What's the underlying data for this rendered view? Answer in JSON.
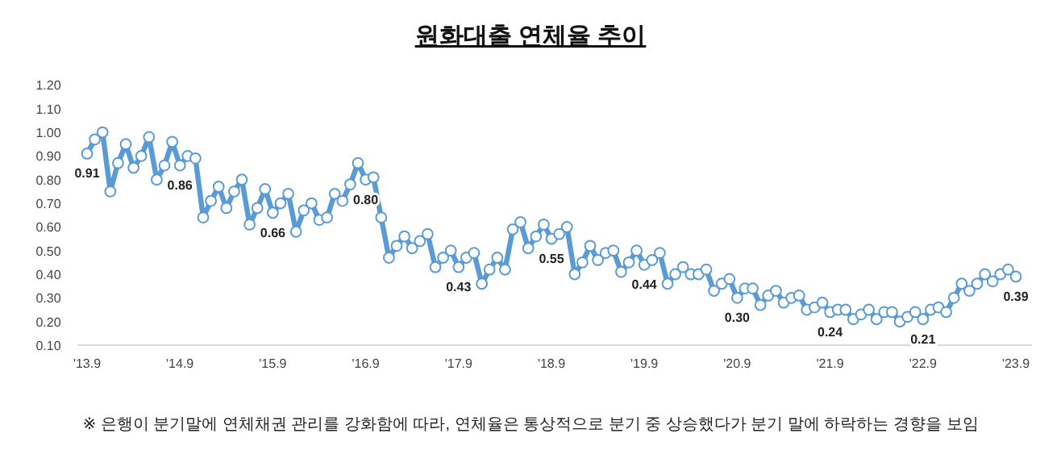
{
  "chart_data": {
    "type": "line",
    "title": "원화대출 연체율 추이",
    "categories": [
      "'13.9",
      null,
      null,
      null,
      null,
      null,
      null,
      null,
      null,
      null,
      null,
      null,
      "'14.9",
      null,
      null,
      null,
      null,
      null,
      null,
      null,
      null,
      null,
      null,
      null,
      "'15.9",
      null,
      null,
      null,
      null,
      null,
      null,
      null,
      null,
      null,
      null,
      null,
      "'16.9",
      null,
      null,
      null,
      null,
      null,
      null,
      null,
      null,
      null,
      null,
      null,
      "'17.9",
      null,
      null,
      null,
      null,
      null,
      null,
      null,
      null,
      null,
      null,
      null,
      "'18.9",
      null,
      null,
      null,
      null,
      null,
      null,
      null,
      null,
      null,
      null,
      null,
      "'19.9",
      null,
      null,
      null,
      null,
      null,
      null,
      null,
      null,
      null,
      null,
      null,
      "'20.9",
      null,
      null,
      null,
      null,
      null,
      null,
      null,
      null,
      null,
      null,
      null,
      "'21.9",
      null,
      null,
      null,
      null,
      null,
      null,
      null,
      null,
      null,
      null,
      null,
      "'22.9",
      null,
      null,
      null,
      null,
      null,
      null,
      null,
      null,
      null,
      null,
      null,
      "'23.9"
    ],
    "series": [
      {
        "color": "#5b9bd5",
        "values": [
          0.91,
          0.97,
          1.0,
          0.75,
          0.87,
          0.95,
          0.85,
          0.9,
          0.98,
          0.8,
          0.86,
          0.96,
          0.86,
          0.9,
          0.89,
          0.64,
          0.71,
          0.77,
          0.68,
          0.75,
          0.8,
          0.61,
          0.68,
          0.76,
          0.66,
          0.7,
          0.74,
          0.58,
          0.67,
          0.7,
          0.63,
          0.64,
          0.74,
          0.71,
          0.78,
          0.87,
          0.8,
          0.81,
          0.64,
          0.47,
          0.52,
          0.56,
          0.51,
          0.54,
          0.57,
          0.43,
          0.47,
          0.5,
          0.43,
          0.47,
          0.49,
          0.36,
          0.42,
          0.47,
          0.42,
          0.59,
          0.62,
          0.51,
          0.56,
          0.61,
          0.55,
          0.57,
          0.6,
          0.4,
          0.45,
          0.52,
          0.46,
          0.49,
          0.5,
          0.41,
          0.45,
          0.5,
          0.44,
          0.46,
          0.49,
          0.36,
          0.4,
          0.43,
          0.4,
          0.4,
          0.42,
          0.33,
          0.36,
          0.38,
          0.3,
          0.34,
          0.34,
          0.27,
          0.31,
          0.33,
          0.28,
          0.3,
          0.31,
          0.25,
          0.26,
          0.28,
          0.24,
          0.25,
          0.25,
          0.21,
          0.23,
          0.25,
          0.21,
          0.24,
          0.24,
          0.2,
          0.22,
          0.24,
          0.21,
          0.25,
          0.26,
          0.24,
          0.3,
          0.36,
          0.33,
          0.36,
          0.4,
          0.37,
          0.4,
          0.42,
          0.39
        ],
        "value_labels": [
          "0.91",
          null,
          null,
          null,
          null,
          null,
          null,
          null,
          null,
          null,
          null,
          null,
          "0.86",
          null,
          null,
          null,
          null,
          null,
          null,
          null,
          null,
          null,
          null,
          null,
          "0.66",
          null,
          null,
          null,
          null,
          null,
          null,
          null,
          null,
          null,
          null,
          null,
          "0.80",
          null,
          null,
          null,
          null,
          null,
          null,
          null,
          null,
          null,
          null,
          null,
          "0.43",
          null,
          null,
          null,
          null,
          null,
          null,
          null,
          null,
          null,
          null,
          null,
          "0.55",
          null,
          null,
          null,
          null,
          null,
          null,
          null,
          null,
          null,
          null,
          null,
          "0.44",
          null,
          null,
          null,
          null,
          null,
          null,
          null,
          null,
          null,
          null,
          null,
          "0.30",
          null,
          null,
          null,
          null,
          null,
          null,
          null,
          null,
          null,
          null,
          null,
          "0.24",
          null,
          null,
          null,
          null,
          null,
          null,
          null,
          null,
          null,
          null,
          null,
          "0.21",
          null,
          null,
          null,
          null,
          null,
          null,
          null,
          null,
          null,
          null,
          null,
          "0.39"
        ]
      }
    ],
    "ylim": [
      0.1,
      1.2
    ],
    "yticks": [
      {
        "value": 0.1,
        "label": "0.10"
      },
      {
        "value": 0.2,
        "label": "0.20"
      },
      {
        "value": 0.3,
        "label": "0.30"
      },
      {
        "value": 0.4,
        "label": "0.40"
      },
      {
        "value": 0.5,
        "label": "0.50"
      },
      {
        "value": 0.6,
        "label": "0.60"
      },
      {
        "value": 0.7,
        "label": "0.70"
      },
      {
        "value": 0.8,
        "label": "0.80"
      },
      {
        "value": 0.9,
        "label": "0.90"
      },
      {
        "value": 1.0,
        "label": "1.00"
      },
      {
        "value": 1.1,
        "label": "1.10"
      },
      {
        "value": 1.2,
        "label": "1.20"
      }
    ],
    "grid": false,
    "marker": "circle",
    "line_style": "solid",
    "annotations": [
      "※ 은행이 분기말에 연체채권 관리를 강화함에 따라, 연체율은 통상적으로 분기 중 상승했다가 분기 말에 하락하는 경향을 보임"
    ]
  }
}
